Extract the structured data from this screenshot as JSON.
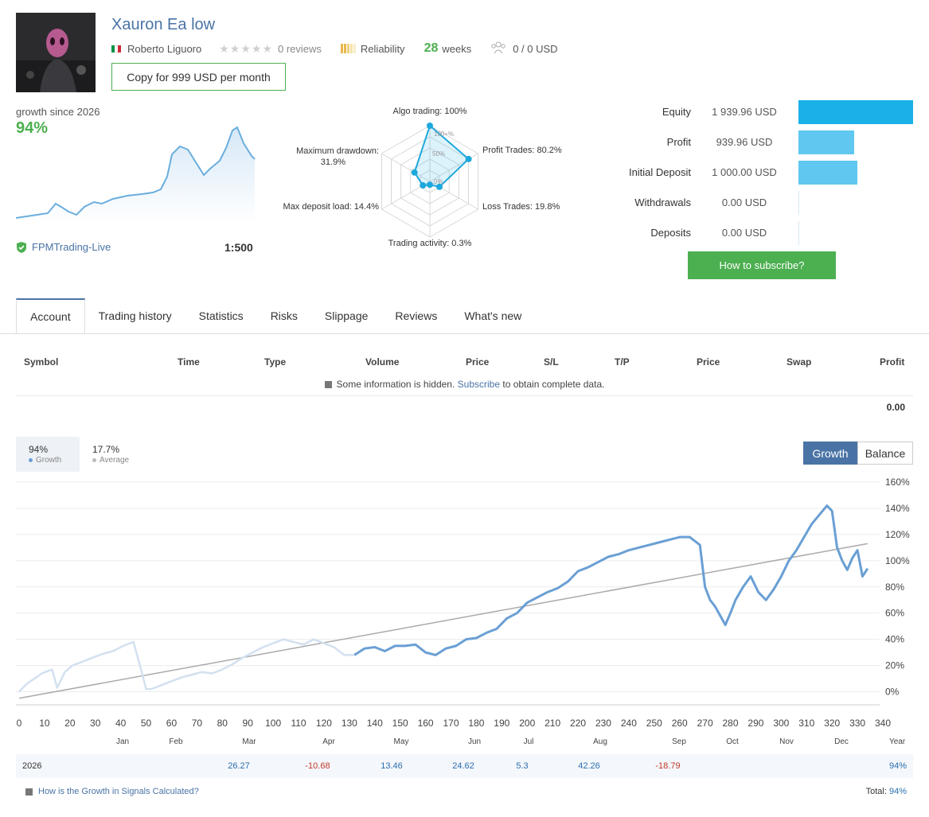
{
  "header": {
    "title": "Xauron Ea low",
    "author": "Roberto Liguoro",
    "reviews": "0 reviews",
    "reliability_label": "Reliability",
    "weeks_value": "28",
    "weeks_unit": "weeks",
    "subscribers": "0 / 0 USD",
    "copy_button": "Copy for 999 USD per month",
    "flag_colors": [
      "#009246",
      "#ffffff",
      "#ce2b37"
    ]
  },
  "growth_summary": {
    "label": "growth since 2026",
    "value": "94%",
    "broker": "FPMTrading-Live",
    "leverage": "1:500"
  },
  "radar": {
    "axes": [
      {
        "label": "Algo trading: 100%",
        "value": 100
      },
      {
        "label": "Profit Trades: 80.2%",
        "value": 80.2
      },
      {
        "label": "Loss Trades: 19.8%",
        "value": 19.8
      },
      {
        "label": "Trading activity: 0.3%",
        "value": 0.3
      },
      {
        "label": "Max deposit load: 14.4%",
        "value": 14.4
      },
      {
        "label": "Maximum drawdown:",
        "label2": "31.9%",
        "value": 31.9
      }
    ],
    "scale_100": "100+%",
    "scale_50": "50%",
    "scale_0": "0%"
  },
  "account_stats": [
    {
      "label": "Equity",
      "value": "1 939.96 USD",
      "bar": 1.0,
      "color": "#1bb0e8"
    },
    {
      "label": "Profit",
      "value": "939.96 USD",
      "bar": 0.484,
      "color": "#5fc7f0"
    },
    {
      "label": "Initial Deposit",
      "value": "1 000.00 USD",
      "bar": 0.515,
      "color": "#5fc7f0"
    },
    {
      "label": "Withdrawals",
      "value": "0.00 USD",
      "bar": 0,
      "color": "#5fc7f0"
    },
    {
      "label": "Deposits",
      "value": "0.00 USD",
      "bar": 0,
      "color": "#5fc7f0"
    }
  ],
  "subscribe_button": "How to subscribe?",
  "tabs": [
    "Account",
    "Trading history",
    "Statistics",
    "Risks",
    "Slippage",
    "Reviews",
    "What's new"
  ],
  "table": {
    "headers": [
      "Symbol",
      "Time",
      "Type",
      "Volume",
      "Price",
      "S/L",
      "T/P",
      "Price",
      "Swap",
      "Profit"
    ],
    "hidden_prefix": "Some information is hidden.",
    "hidden_link": "Subscribe",
    "hidden_suffix": "to obtain complete data.",
    "total_profit": "0.00"
  },
  "growth_chart": {
    "growth_value": "94%",
    "growth_label": "Growth",
    "average_value": "17.7%",
    "average_label": "Average",
    "toggle_growth": "Growth",
    "toggle_balance": "Balance",
    "months": [
      "Jan",
      "Feb",
      "Mar",
      "Apr",
      "May",
      "Jun",
      "Jul",
      "Aug",
      "Sep",
      "Oct",
      "Nov",
      "Dec"
    ],
    "year_label": "Year",
    "year": "2026",
    "monthly": [
      {
        "month": "Mar",
        "value": "26.27",
        "sign": "pos"
      },
      {
        "month": "Apr",
        "value": "-10.68",
        "sign": "neg"
      },
      {
        "month": "May",
        "value": "13.46",
        "sign": "pos"
      },
      {
        "month": "Jun",
        "value": "24.62",
        "sign": "pos"
      },
      {
        "month": "Jul",
        "value": "5.3",
        "sign": "pos"
      },
      {
        "month": "Aug",
        "value": "42.26",
        "sign": "pos"
      },
      {
        "month": "Sep",
        "value": "-18.79",
        "sign": "neg"
      }
    ],
    "year_total": "94%",
    "how_link": "How is the Growth in Signals Calculated?",
    "total_label": "Total:",
    "total_value": "94%"
  },
  "chart_data": {
    "type": "line",
    "xlabel": "",
    "ylabel": "",
    "xlim": [
      0,
      340
    ],
    "ylim": [
      -10,
      160
    ],
    "x_ticks": [
      0,
      10,
      20,
      30,
      40,
      50,
      60,
      70,
      80,
      90,
      100,
      110,
      120,
      130,
      140,
      150,
      160,
      170,
      180,
      190,
      200,
      210,
      220,
      230,
      240,
      250,
      260,
      270,
      280,
      290,
      300,
      310,
      320,
      330,
      340
    ],
    "y_ticks": [
      "0%",
      "20%",
      "40%",
      "60%",
      "80%",
      "100%",
      "120%",
      "140%",
      "160%"
    ],
    "series": [
      {
        "name": "Growth",
        "color": "#6a9fd4",
        "faded_until_x": 133,
        "x": [
          0,
          3,
          6,
          9,
          13,
          15,
          18,
          21,
          25,
          29,
          33,
          37,
          41,
          45,
          48,
          50,
          52,
          56,
          60,
          64,
          68,
          72,
          76,
          80,
          84,
          88,
          92,
          96,
          100,
          104,
          108,
          112,
          116,
          120,
          124,
          128,
          132,
          136,
          140,
          144,
          148,
          152,
          156,
          160,
          164,
          168,
          172,
          176,
          180,
          184,
          188,
          192,
          196,
          200,
          204,
          208,
          212,
          216,
          220,
          224,
          228,
          232,
          236,
          240,
          244,
          248,
          252,
          256,
          260,
          264,
          268,
          270,
          272,
          274,
          276,
          278,
          280,
          282,
          285,
          288,
          291,
          294,
          297,
          300,
          303,
          306,
          309,
          312,
          315,
          318,
          320,
          322,
          324,
          326,
          328,
          330,
          332,
          334
        ],
        "y": [
          0,
          6,
          10,
          14,
          17,
          3,
          15,
          20,
          23,
          26,
          29,
          31,
          35,
          38,
          17,
          2,
          2,
          5,
          8,
          11,
          13,
          15,
          14,
          17,
          21,
          26,
          30,
          34,
          37,
          40,
          38,
          36,
          40,
          37,
          34,
          28,
          28,
          33,
          34,
          31,
          35,
          35,
          36,
          30,
          28,
          33,
          35,
          40,
          41,
          45,
          48,
          56,
          60,
          68,
          72,
          76,
          79,
          84,
          92,
          95,
          99,
          103,
          105,
          108,
          110,
          112,
          114,
          116,
          118,
          118,
          112,
          80,
          70,
          65,
          58,
          51,
          60,
          70,
          80,
          88,
          76,
          70,
          78,
          88,
          100,
          108,
          118,
          128,
          135,
          142,
          138,
          110,
          100,
          93,
          102,
          108,
          88,
          94
        ]
      },
      {
        "name": "Average",
        "color": "#aaaaaa",
        "x": [
          0,
          334
        ],
        "y": [
          -5,
          113
        ]
      }
    ]
  }
}
